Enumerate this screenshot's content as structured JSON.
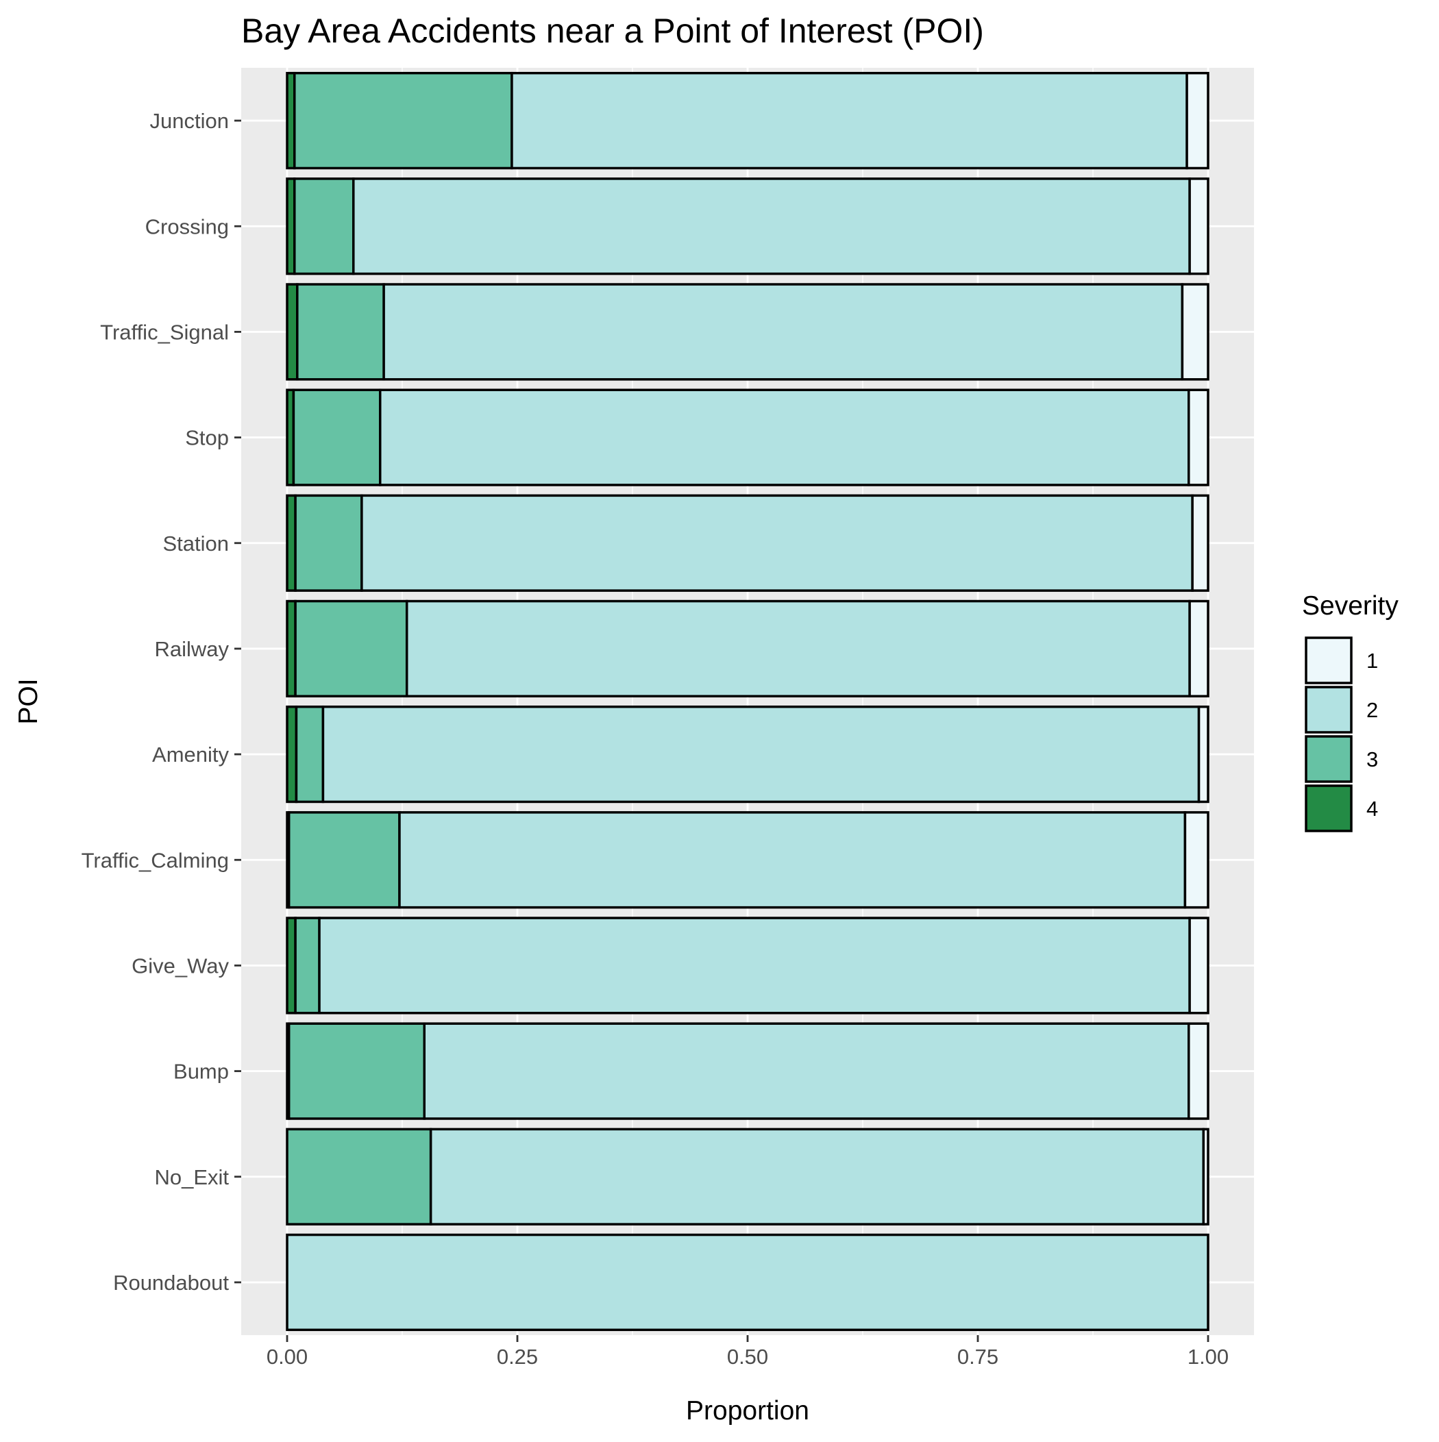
{
  "chart_data": {
    "type": "bar",
    "orientation": "horizontal",
    "stacked": "fill",
    "title": "Bay Area Accidents near a Point of Interest (POI)",
    "xlabel": "Proportion",
    "ylabel": "POI",
    "xlim": [
      0,
      1
    ],
    "x_ticks": [
      "0.00",
      "0.25",
      "0.50",
      "0.75",
      "1.00"
    ],
    "grid": true,
    "legend": {
      "title": "Severity",
      "position": "right"
    },
    "categories": [
      "Junction",
      "Crossing",
      "Traffic_Signal",
      "Stop",
      "Station",
      "Railway",
      "Amenity",
      "Traffic_Calming",
      "Give_Way",
      "Bump",
      "No_Exit",
      "Roundabout"
    ],
    "series": [
      {
        "name": "1",
        "color": "#edf8fb",
        "values": [
          0.023,
          0.02,
          0.028,
          0.021,
          0.017,
          0.02,
          0.01,
          0.025,
          0.02,
          0.021,
          0.005,
          0.0
        ]
      },
      {
        "name": "2",
        "color": "#b2e2e2",
        "values": [
          0.733,
          0.908,
          0.867,
          0.878,
          0.902,
          0.85,
          0.951,
          0.853,
          0.945,
          0.83,
          0.839,
          1.0
        ]
      },
      {
        "name": "3",
        "color": "#66c2a4",
        "values": [
          0.236,
          0.064,
          0.094,
          0.094,
          0.072,
          0.121,
          0.029,
          0.12,
          0.026,
          0.147,
          0.156,
          0.0
        ]
      },
      {
        "name": "4",
        "color": "#238b45",
        "values": [
          0.008,
          0.008,
          0.011,
          0.007,
          0.009,
          0.009,
          0.01,
          0.002,
          0.009,
          0.002,
          0.0,
          0.0
        ]
      }
    ]
  }
}
